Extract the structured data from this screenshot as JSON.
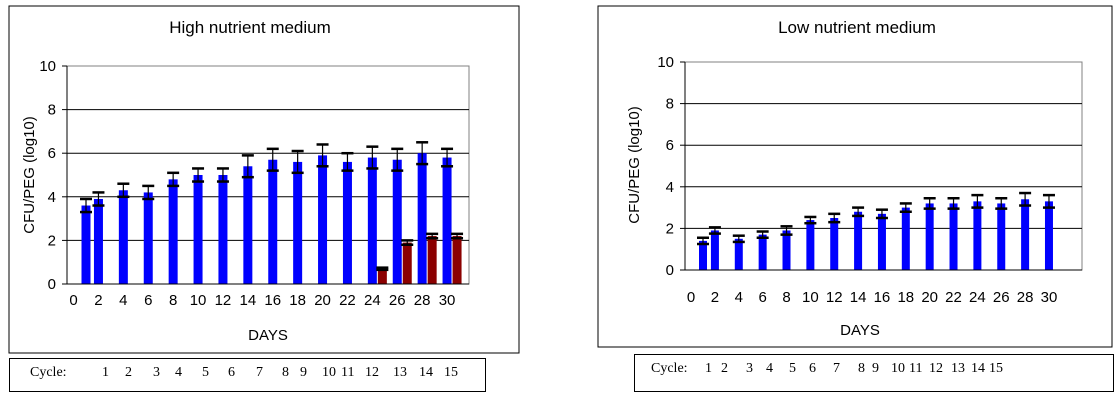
{
  "chart_data": [
    {
      "type": "bar",
      "title": "High nutrient medium",
      "xlabel": "DAYS",
      "ylabel": "CFU/PEG (log10)",
      "ylim": [
        0,
        10
      ],
      "yticks": [
        0,
        2,
        4,
        6,
        8,
        10
      ],
      "grid": true,
      "xticks": [
        "0",
        "2",
        "4",
        "6",
        "8",
        "10",
        "12",
        "14",
        "16",
        "18",
        "20",
        "22",
        "24",
        "26",
        "28",
        "30"
      ],
      "colors": {
        "series_a": "#0000ff",
        "series_b": "#8b0000"
      },
      "series_a": [
        {
          "x": 1,
          "v": 3.6,
          "e": 0.3
        },
        {
          "x": 2,
          "v": 3.9,
          "e": 0.3
        },
        {
          "x": 4,
          "v": 4.3,
          "e": 0.3
        },
        {
          "x": 6,
          "v": 4.2,
          "e": 0.3
        },
        {
          "x": 8,
          "v": 4.8,
          "e": 0.3
        },
        {
          "x": 10,
          "v": 5.0,
          "e": 0.3
        },
        {
          "x": 12,
          "v": 5.0,
          "e": 0.3
        },
        {
          "x": 14,
          "v": 5.4,
          "e": 0.5
        },
        {
          "x": 16,
          "v": 5.7,
          "e": 0.5
        },
        {
          "x": 18,
          "v": 5.6,
          "e": 0.5
        },
        {
          "x": 20,
          "v": 5.9,
          "e": 0.5
        },
        {
          "x": 22,
          "v": 5.6,
          "e": 0.4
        },
        {
          "x": 24,
          "v": 5.8,
          "e": 0.5
        },
        {
          "x": 26,
          "v": 5.7,
          "e": 0.5
        },
        {
          "x": 28,
          "v": 6.0,
          "e": 0.5
        },
        {
          "x": 30,
          "v": 5.8,
          "e": 0.4
        }
      ],
      "series_b": [
        {
          "x": 24,
          "v": 0.7,
          "e": 0.05
        },
        {
          "x": 26,
          "v": 1.9,
          "e": 0.1
        },
        {
          "x": 28,
          "v": 2.2,
          "e": 0.1
        },
        {
          "x": 30,
          "v": 2.2,
          "e": 0.1
        }
      ]
    },
    {
      "type": "bar",
      "title": "Low nutrient medium",
      "xlabel": "DAYS",
      "ylabel": "CFU/PEG (log10)",
      "ylim": [
        0,
        10
      ],
      "yticks": [
        0,
        2,
        4,
        6,
        8,
        10
      ],
      "grid": true,
      "xticks": [
        "0",
        "2",
        "4",
        "6",
        "8",
        "10",
        "12",
        "14",
        "16",
        "18",
        "20",
        "22",
        "24",
        "26",
        "28",
        "30"
      ],
      "colors": {
        "series_a": "#0000ff"
      },
      "series_a": [
        {
          "x": 1,
          "v": 1.4,
          "e": 0.15
        },
        {
          "x": 2,
          "v": 1.9,
          "e": 0.15
        },
        {
          "x": 4,
          "v": 1.5,
          "e": 0.15
        },
        {
          "x": 6,
          "v": 1.7,
          "e": 0.15
        },
        {
          "x": 8,
          "v": 1.9,
          "e": 0.2
        },
        {
          "x": 10,
          "v": 2.4,
          "e": 0.15
        },
        {
          "x": 12,
          "v": 2.5,
          "e": 0.2
        },
        {
          "x": 14,
          "v": 2.8,
          "e": 0.2
        },
        {
          "x": 16,
          "v": 2.7,
          "e": 0.2
        },
        {
          "x": 18,
          "v": 3.0,
          "e": 0.2
        },
        {
          "x": 20,
          "v": 3.2,
          "e": 0.25
        },
        {
          "x": 22,
          "v": 3.2,
          "e": 0.25
        },
        {
          "x": 24,
          "v": 3.3,
          "e": 0.3
        },
        {
          "x": 26,
          "v": 3.2,
          "e": 0.25
        },
        {
          "x": 28,
          "v": 3.4,
          "e": 0.3
        },
        {
          "x": 30,
          "v": 3.3,
          "e": 0.3
        }
      ]
    }
  ],
  "cycles": {
    "left": {
      "label": "Cycle:",
      "numbers": [
        "1",
        "2",
        "3",
        "4",
        "5",
        "6",
        "7",
        "8",
        "9",
        "10",
        "11",
        "12",
        "13",
        "14",
        "15"
      ]
    },
    "right": {
      "label": "Cycle:",
      "numbers": [
        "1",
        "2",
        "3",
        "4",
        "5",
        "6",
        "7",
        "8",
        "9",
        "10",
        "11",
        "12",
        "13",
        "14",
        "15"
      ]
    }
  }
}
